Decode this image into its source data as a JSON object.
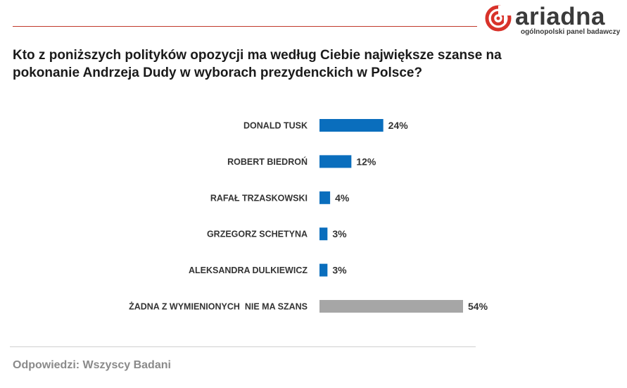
{
  "logo": {
    "word": "ariadna",
    "tagline": "ogólnopolski panel badawczy",
    "color_mark": "#d8322a",
    "color_text": "#3a3a3a"
  },
  "question": "Kto z poniższych polityków opozycji ma według Ciebie największe szanse na pokonanie Andrzeja Dudy w wyborach prezydenckich w Polsce?",
  "footer": "Odpowiedzi: Wszyscy Badani",
  "chart_data": {
    "type": "bar",
    "orientation": "horizontal",
    "categories": [
      "DONALD TUSK",
      "ROBERT BIEDROŃ",
      "RAFAŁ TRZASKOWSKI",
      "GRZEGORZ SCHETYNA",
      "ALEKSANDRA DULKIEWICZ",
      "ŻADNA Z WYMIENIONYCH  NIE MA SZANS"
    ],
    "values": [
      24,
      12,
      4,
      3,
      3,
      54
    ],
    "value_labels": [
      "24%",
      "12%",
      "4%",
      "3%",
      "3%",
      "54%"
    ],
    "colors": [
      "#0a6ebd",
      "#0a6ebd",
      "#0a6ebd",
      "#0a6ebd",
      "#0a6ebd",
      "#a6a6a6"
    ],
    "xlim": [
      0,
      54
    ],
    "grid": false,
    "legend": "none"
  }
}
